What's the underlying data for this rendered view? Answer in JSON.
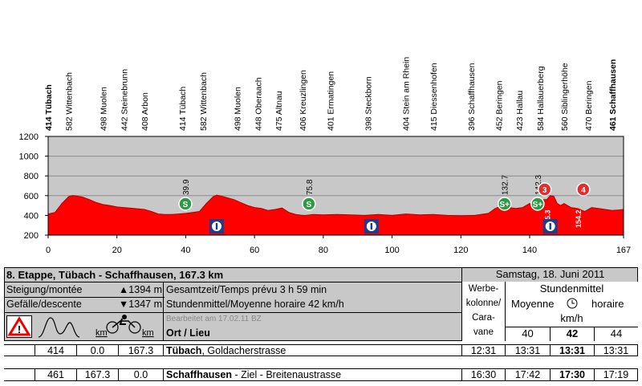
{
  "chart_data": {
    "type": "area",
    "title": "",
    "xlabel": "",
    "ylabel": "",
    "xlim": [
      0,
      167.3
    ],
    "ylim": [
      200,
      1200
    ],
    "x_ticks": [
      "0",
      "20",
      "40",
      "60",
      "80",
      "100",
      "120",
      "140",
      "167"
    ],
    "y_ticks": [
      "200",
      "400",
      "600",
      "800",
      "1000",
      "1200"
    ],
    "grid": true,
    "colors": {
      "area": "#ff0000",
      "background": "#c8c8c8",
      "sprint": "#2e9a46",
      "climb": "#e52b2b",
      "feed": "#1e3c8c"
    },
    "profile": {
      "x": [
        0,
        2,
        4,
        6,
        7,
        8,
        10,
        12,
        14,
        16,
        18,
        20,
        22,
        25,
        28,
        30,
        32,
        34,
        36,
        38,
        40,
        42,
        44,
        46,
        48,
        49,
        50,
        52,
        54,
        56,
        58,
        60,
        62,
        64,
        66,
        68,
        70,
        72,
        74,
        75,
        77,
        80,
        84,
        88,
        92,
        96,
        100,
        104,
        108,
        112,
        116,
        120,
        124,
        128,
        130,
        132,
        133,
        134,
        136,
        138,
        139,
        140,
        142,
        143,
        144,
        145,
        146,
        147,
        148,
        149,
        150,
        151,
        152,
        154,
        156,
        158,
        160,
        162,
        164,
        166,
        167.3
      ],
      "y": [
        414,
        430,
        520,
        590,
        600,
        598,
        585,
        560,
        530,
        510,
        500,
        485,
        480,
        470,
        460,
        440,
        415,
        410,
        410,
        415,
        420,
        430,
        440,
        520,
        590,
        605,
        598,
        580,
        560,
        530,
        500,
        480,
        470,
        450,
        460,
        475,
        430,
        410,
        400,
        400,
        410,
        405,
        410,
        405,
        400,
        410,
        400,
        415,
        405,
        410,
        400,
        396,
        400,
        420,
        470,
        500,
        510,
        480,
        470,
        480,
        500,
        520,
        470,
        490,
        560,
        560,
        600,
        595,
        520,
        500,
        520,
        500,
        480,
        470,
        440,
        480,
        470,
        460,
        450,
        455,
        461
      ]
    },
    "towns": [
      {
        "km": 0,
        "label": "414 Tübach",
        "bold": true
      },
      {
        "km": 6,
        "label": "582 Wittenbach",
        "bold": false
      },
      {
        "km": 16,
        "label": "498 Muolen",
        "bold": false
      },
      {
        "km": 22,
        "label": "442 Steinebrunn",
        "bold": false
      },
      {
        "km": 28,
        "label": "408 Arbon",
        "bold": false
      },
      {
        "km": 39,
        "label": "414 Tübach",
        "bold": false
      },
      {
        "km": 45,
        "label": "582 Wittenbach",
        "bold": false
      },
      {
        "km": 55,
        "label": "498 Muolen",
        "bold": false
      },
      {
        "km": 61,
        "label": "448 Oberaach",
        "bold": false
      },
      {
        "km": 67,
        "label": "475 Altnau",
        "bold": false
      },
      {
        "km": 74,
        "label": "406 Kreuzlingen",
        "bold": false
      },
      {
        "km": 82,
        "label": "401 Ermatingen",
        "bold": false
      },
      {
        "km": 93,
        "label": "398 Steckborn",
        "bold": false
      },
      {
        "km": 104,
        "label": "404 Stein am Rhein",
        "bold": false
      },
      {
        "km": 112,
        "label": "415 Diessenhofen",
        "bold": false
      },
      {
        "km": 123,
        "label": "396 Schaffhausen",
        "bold": false
      },
      {
        "km": 131,
        "label": "452 Beringen",
        "bold": false
      },
      {
        "km": 137,
        "label": "423 Hallau",
        "bold": false
      },
      {
        "km": 143,
        "label": "584 Hallauerberg",
        "bold": false
      },
      {
        "km": 150,
        "label": "560 Siblingerhöhe",
        "bold": false
      },
      {
        "km": 157,
        "label": "470 Beringen",
        "bold": false
      },
      {
        "km": 164,
        "label": "461 Schaffhausen",
        "bold": true
      }
    ],
    "annotations": [
      {
        "type": "sprint",
        "km": 39.9,
        "label": "39.9",
        "symbol": "S"
      },
      {
        "type": "sprint",
        "km": 75.8,
        "label": "75.8",
        "symbol": "S"
      },
      {
        "type": "sprint",
        "km": 132.7,
        "label": "132.7",
        "symbol": "S+"
      },
      {
        "type": "sprint",
        "km": 142.3,
        "label": "142.3",
        "symbol": "S+"
      },
      {
        "type": "climb",
        "km": 145.3,
        "label": "145.3",
        "symbol": "3"
      },
      {
        "type": "climb",
        "km": 154.2,
        "label": "154.2",
        "symbol": "4"
      },
      {
        "type": "feed",
        "km": 49
      },
      {
        "type": "feed",
        "km": 94
      },
      {
        "type": "feed",
        "km": 146
      }
    ]
  },
  "stage": {
    "title": "8. Etappe,  Tübach - Schaffhausen, 167.3 km",
    "date": "Samstag, 18. Juni 2011",
    "climb_label": "Steigung/montée",
    "climb_value": "▲1394 m",
    "descent_label": "Gefälle/descente",
    "descent_value": "▼1347 m",
    "total_time": "Gesamtzeit/Temps prévu 3 h 59 min",
    "avg_speed": "Stundenmittel/Moyenne horaire 42 km/h",
    "edited": "Bearbeitet am 17.02.11 BZ",
    "place_header": "Ort / Lieu",
    "km_icon_label": "km",
    "caravan_lines": [
      "Werbe-",
      "kolonne/",
      "Cara-",
      "vane"
    ],
    "speed_header": "Stundenmittel",
    "moyenne": "Moyenne",
    "horaire": "horaire",
    "kmh": "km/h",
    "speeds": [
      "40",
      "42",
      "44"
    ]
  },
  "rows": [
    {
      "alt": "414",
      "km": "0.0",
      "rem": "167.3",
      "place": "Tübach",
      "detail": ", Goldacherstrasse",
      "caravan": "12:31",
      "t40": "13:31",
      "t42": "13:31",
      "t44": "13:31"
    },
    {
      "alt": "461",
      "km": "167.3",
      "rem": "0.0",
      "place": "Schaffhausen",
      "detail": " - Ziel - Breitenaustrasse",
      "caravan": "16:30",
      "t40": "17:42",
      "t42": "17:30",
      "t44": "17:19"
    }
  ]
}
